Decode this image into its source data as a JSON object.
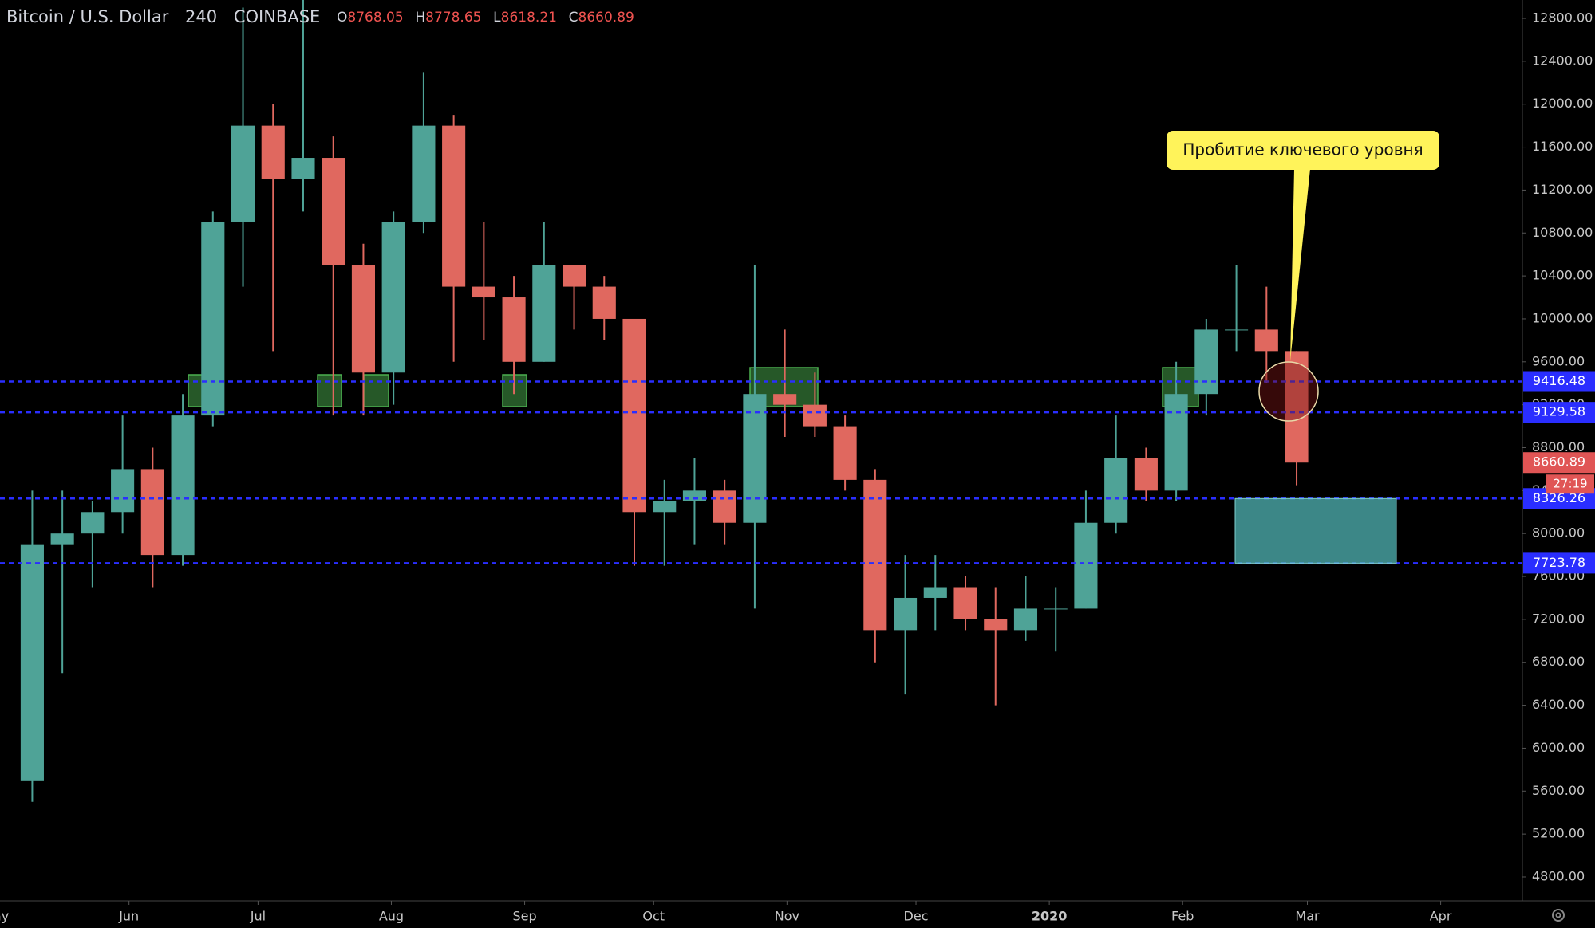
{
  "chart_data": {
    "type": "candlestick",
    "title": "Bitcoin / U.S. Dollar",
    "interval": 240,
    "exchange": "COINBASE",
    "ohlc_labels": [
      "O",
      "H",
      "L",
      "C"
    ],
    "ohlc": [
      8768.05,
      8778.65,
      8618.21,
      8660.89
    ],
    "x": [
      "2019-05-06",
      "2019-05-13",
      "2019-05-20",
      "2019-05-27",
      "2019-06-03",
      "2019-06-10",
      "2019-06-17",
      "2019-06-24",
      "2019-07-01",
      "2019-07-08",
      "2019-07-15",
      "2019-07-22",
      "2019-07-29",
      "2019-08-05",
      "2019-08-12",
      "2019-08-19",
      "2019-08-26",
      "2019-09-02",
      "2019-09-09",
      "2019-09-16",
      "2019-09-23",
      "2019-09-30",
      "2019-10-07",
      "2019-10-14",
      "2019-10-21",
      "2019-10-28",
      "2019-11-04",
      "2019-11-11",
      "2019-11-18",
      "2019-11-25",
      "2019-12-02",
      "2019-12-09",
      "2019-12-16",
      "2019-12-23",
      "2019-12-30",
      "2020-01-06",
      "2020-01-13",
      "2020-01-20",
      "2020-01-27",
      "2020-02-03",
      "2020-02-10",
      "2020-02-17",
      "2020-02-24"
    ],
    "open": [
      5700,
      7900,
      8000,
      8200,
      8600,
      7800,
      9100,
      10900,
      11800,
      11300,
      11500,
      10500,
      9500,
      10900,
      11800,
      10300,
      10200,
      9600,
      10500,
      10300,
      10000,
      8200,
      8300,
      8400,
      8100,
      9300,
      9200,
      9000,
      8500,
      7100,
      7400,
      7500,
      7200,
      7100,
      7300,
      7300,
      8100,
      8700,
      8400,
      9300,
      9900,
      9900,
      9700
    ],
    "high": [
      8400,
      8400,
      8300,
      9100,
      8800,
      9300,
      11000,
      12900,
      12000,
      13000,
      11700,
      10700,
      11000,
      12300,
      11900,
      10900,
      10400,
      10900,
      10500,
      10400,
      10000,
      8500,
      8700,
      8500,
      10500,
      9900,
      9500,
      9100,
      8600,
      7800,
      7800,
      7600,
      7500,
      7600,
      7500,
      8400,
      9100,
      8800,
      9600,
      10000,
      10500,
      10300,
      9700
    ],
    "low": [
      5500,
      6700,
      7500,
      8000,
      7500,
      7700,
      9000,
      10300,
      9700,
      11000,
      9100,
      9100,
      9200,
      10800,
      9600,
      9800,
      9300,
      9600,
      9900,
      9800,
      7700,
      7700,
      7900,
      7900,
      7300,
      8900,
      8900,
      8400,
      6800,
      6500,
      7100,
      7100,
      6400,
      7000,
      6900,
      7300,
      8000,
      8300,
      8300,
      9100,
      9700,
      9400,
      8450
    ],
    "close": [
      7900,
      8000,
      8200,
      8600,
      7800,
      9100,
      10900,
      11800,
      11300,
      11500,
      10500,
      9500,
      10900,
      11800,
      10300,
      10200,
      9600,
      10500,
      10300,
      10000,
      8200,
      8300,
      8400,
      8100,
      9300,
      9200,
      9000,
      8500,
      7100,
      7400,
      7500,
      7200,
      7100,
      7300,
      7300,
      8100,
      8700,
      8400,
      9300,
      9900,
      9900,
      9700,
      8660.89
    ],
    "up_color": "#4fa397",
    "down_color": "#e0685f",
    "xlim": [
      "2019-05-02",
      "2020-04-20"
    ],
    "xticks": [
      {
        "value": "2019-05-01",
        "label": "May"
      },
      {
        "value": "2019-06-01",
        "label": "Jun"
      },
      {
        "value": "2019-07-01",
        "label": "Jul"
      },
      {
        "value": "2019-08-01",
        "label": "Aug"
      },
      {
        "value": "2019-09-01",
        "label": "Sep"
      },
      {
        "value": "2019-10-01",
        "label": "Oct"
      },
      {
        "value": "2019-11-01",
        "label": "Nov"
      },
      {
        "value": "2019-12-01",
        "label": "Dec"
      },
      {
        "value": "2020-01-01",
        "label": "2020"
      },
      {
        "value": "2020-02-01",
        "label": "Feb"
      },
      {
        "value": "2020-03-01",
        "label": "Mar"
      },
      {
        "value": "2020-04-01",
        "label": "Apr"
      }
    ],
    "ylim": [
      4577,
      12971
    ],
    "yticks": [
      {
        "value": 4800,
        "label": "4800.00"
      },
      {
        "value": 5200,
        "label": "5200.00"
      },
      {
        "value": 5600,
        "label": "5600.00"
      },
      {
        "value": 6000,
        "label": "6000.00"
      },
      {
        "value": 6400,
        "label": "6400.00"
      },
      {
        "value": 6800,
        "label": "6800.00"
      },
      {
        "value": 7200,
        "label": "7200.00"
      },
      {
        "value": 7600,
        "label": "7600.00"
      },
      {
        "value": 8000,
        "label": "8000.00"
      },
      {
        "value": 8400,
        "label": "8400.00"
      },
      {
        "value": 8800,
        "label": "8800.00"
      },
      {
        "value": 9200,
        "label": "9200.00"
      },
      {
        "value": 9600,
        "label": "9600.00"
      },
      {
        "value": 10000,
        "label": "10000.00"
      },
      {
        "value": 10400,
        "label": "10400.00"
      },
      {
        "value": 10800,
        "label": "10800.00"
      },
      {
        "value": 11200,
        "label": "11200.00"
      },
      {
        "value": 11600,
        "label": "11600.00"
      },
      {
        "value": 12000,
        "label": "12000.00"
      },
      {
        "value": 12400,
        "label": "12400.00"
      },
      {
        "value": 12800,
        "label": "12800.00"
      }
    ],
    "levels": [
      9416.48,
      9129.58,
      8326.26,
      7723.78
    ],
    "level_color": "#2a2eff",
    "last_price": 8660.89,
    "last_price_color": "#e05555",
    "countdown": "27:19",
    "annotation": "Пробитие ключевого уровня",
    "grid": false
  }
}
